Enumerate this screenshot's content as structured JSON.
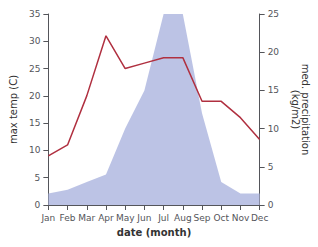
{
  "chart_data": {
    "type": "line",
    "categories": [
      "Jan",
      "Feb",
      "Mar",
      "Apr",
      "May",
      "Jun",
      "Jul",
      "Aug",
      "Sep",
      "Oct",
      "Nov",
      "Dec"
    ],
    "series": [
      {
        "type": "area",
        "axis": "y2",
        "color": "#b0b8e0",
        "values": [
          1.5,
          2,
          3,
          4,
          10,
          15,
          25,
          25,
          12,
          3,
          1.5,
          1.5
        ]
      },
      {
        "type": "line",
        "color": "#b03040",
        "values": [
          9,
          11,
          20,
          31,
          25,
          26,
          27,
          27,
          19,
          19,
          16,
          12
        ]
      }
    ],
    "xlabel": "date (month)",
    "ylabel": "max temp (C)",
    "y2label": "med. precipitation\n(kg/m2)",
    "ylim": [
      0,
      35
    ],
    "yticks": [
      0,
      5,
      10,
      15,
      20,
      25,
      30,
      35
    ],
    "y2lim": [
      0,
      25
    ],
    "y2ticks": [
      0,
      5,
      10,
      15,
      20,
      25
    ],
    "grid": false
  }
}
